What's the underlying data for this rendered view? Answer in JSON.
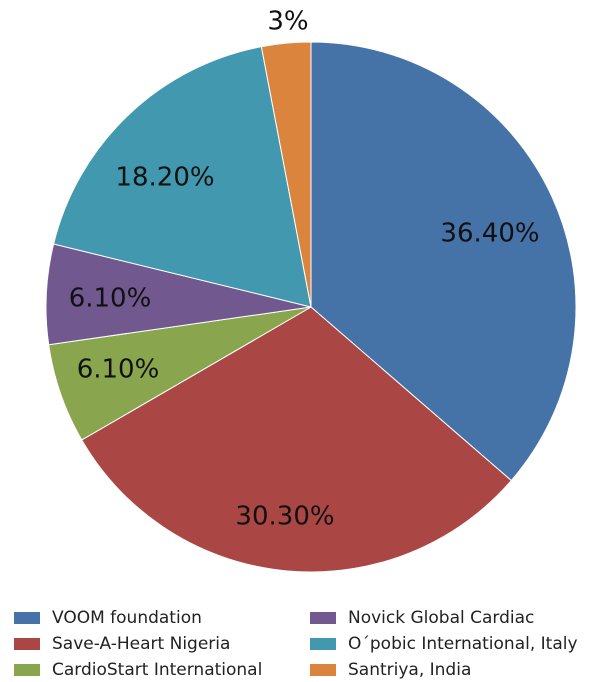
{
  "chart_data": {
    "type": "pie",
    "title": "",
    "start_angle_deg": 0,
    "direction": "clockwise",
    "legend_position": "bottom",
    "slices": [
      {
        "name": "VOOM foundation",
        "value": 36.4,
        "label": "36.40%",
        "color": "#4572a7"
      },
      {
        "name": "Save-A-Heart Nigeria",
        "value": 30.3,
        "label": "30.30%",
        "color": "#aa4643"
      },
      {
        "name": "CardioStart International",
        "value": 6.1,
        "label": "6.10%",
        "color": "#89a54e"
      },
      {
        "name": "Novick Global Cardiac",
        "value": 6.1,
        "label": "6.10%",
        "color": "#71588f"
      },
      {
        "name": "O´pobic International, Italy",
        "value": 18.2,
        "label": "18.20%",
        "color": "#4198af"
      },
      {
        "name": "Santriya, India",
        "value": 3.0,
        "label": "3%",
        "color": "#db843d"
      }
    ]
  }
}
